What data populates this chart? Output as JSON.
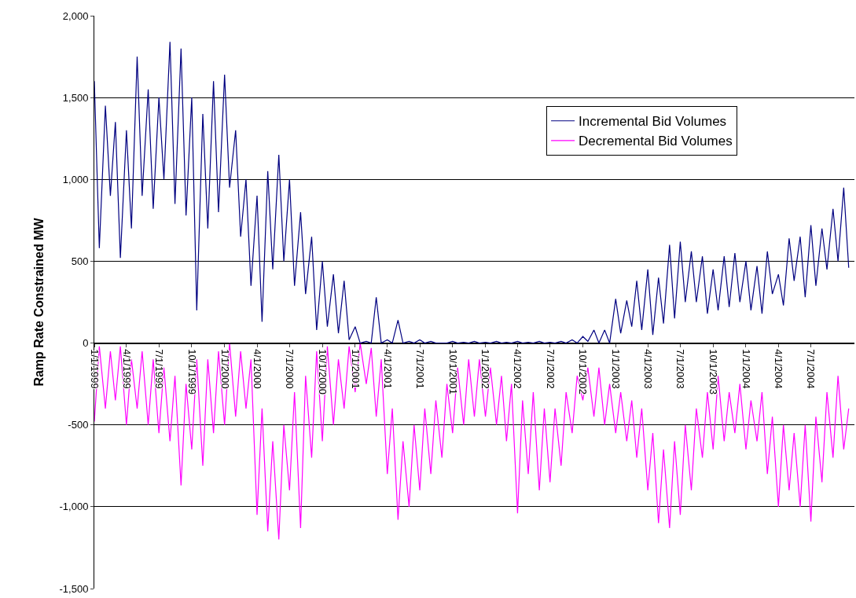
{
  "chart_data": {
    "type": "line",
    "ylabel": "Ramp Rate Constrained MW",
    "x": [
      "1999-01-01",
      "1999-01-15",
      "1999-02-01",
      "1999-02-15",
      "1999-03-01",
      "1999-03-15",
      "1999-04-01",
      "1999-04-15",
      "1999-05-01",
      "1999-05-15",
      "1999-06-01",
      "1999-06-15",
      "1999-07-01",
      "1999-07-15",
      "1999-08-01",
      "1999-08-15",
      "1999-09-01",
      "1999-09-15",
      "1999-10-01",
      "1999-10-15",
      "1999-11-01",
      "1999-11-15",
      "1999-12-01",
      "1999-12-15",
      "2000-01-01",
      "2000-01-15",
      "2000-02-01",
      "2000-02-15",
      "2000-03-01",
      "2000-03-15",
      "2000-04-01",
      "2000-04-15",
      "2000-05-01",
      "2000-05-15",
      "2000-06-01",
      "2000-06-15",
      "2000-07-01",
      "2000-07-15",
      "2000-08-01",
      "2000-08-15",
      "2000-09-01",
      "2000-09-15",
      "2000-10-01",
      "2000-10-15",
      "2000-11-01",
      "2000-11-15",
      "2000-12-01",
      "2000-12-15",
      "2001-01-01",
      "2001-01-15",
      "2001-02-01",
      "2001-02-15",
      "2001-03-01",
      "2001-03-15",
      "2001-04-01",
      "2001-04-15",
      "2001-05-01",
      "2001-05-15",
      "2001-06-01",
      "2001-06-15",
      "2001-07-01",
      "2001-07-15",
      "2001-08-01",
      "2001-08-15",
      "2001-09-01",
      "2001-09-15",
      "2001-10-01",
      "2001-10-15",
      "2001-11-01",
      "2001-11-15",
      "2001-12-01",
      "2001-12-15",
      "2002-01-01",
      "2002-01-15",
      "2002-02-01",
      "2002-02-15",
      "2002-03-01",
      "2002-03-15",
      "2002-04-01",
      "2002-04-15",
      "2002-05-01",
      "2002-05-15",
      "2002-06-01",
      "2002-06-15",
      "2002-07-01",
      "2002-07-15",
      "2002-08-01",
      "2002-08-15",
      "2002-09-01",
      "2002-09-15",
      "2002-10-01",
      "2002-10-15",
      "2002-11-01",
      "2002-11-15",
      "2002-12-01",
      "2002-12-15",
      "2003-01-01",
      "2003-01-15",
      "2003-02-01",
      "2003-02-15",
      "2003-03-01",
      "2003-03-15",
      "2003-04-01",
      "2003-04-15",
      "2003-05-01",
      "2003-05-15",
      "2003-06-01",
      "2003-06-15",
      "2003-07-01",
      "2003-07-15",
      "2003-08-01",
      "2003-08-15",
      "2003-09-01",
      "2003-09-15",
      "2003-10-01",
      "2003-10-15",
      "2003-11-01",
      "2003-11-15",
      "2003-12-01",
      "2003-12-15",
      "2004-01-01",
      "2004-01-15",
      "2004-02-01",
      "2004-02-15",
      "2004-03-01",
      "2004-03-15",
      "2004-04-01",
      "2004-04-15",
      "2004-05-01",
      "2004-05-15",
      "2004-06-01",
      "2004-06-15",
      "2004-07-01",
      "2004-07-15",
      "2004-08-01",
      "2004-08-15",
      "2004-09-01",
      "2004-09-15",
      "2004-10-01",
      "2004-10-15"
    ],
    "series": [
      {
        "name": "Incremental Bid Volumes",
        "color": "#000080",
        "values": [
          1600,
          580,
          1450,
          900,
          1350,
          520,
          1300,
          700,
          1750,
          900,
          1550,
          820,
          1500,
          1000,
          1840,
          850,
          1800,
          780,
          1500,
          200,
          1400,
          700,
          1600,
          800,
          1640,
          950,
          1300,
          650,
          1000,
          350,
          900,
          130,
          1050,
          450,
          1150,
          500,
          1000,
          350,
          800,
          300,
          650,
          80,
          500,
          100,
          420,
          60,
          380,
          20,
          100,
          0,
          10,
          0,
          280,
          0,
          20,
          0,
          140,
          0,
          10,
          0,
          20,
          0,
          10,
          0,
          0,
          0,
          10,
          0,
          5,
          0,
          10,
          0,
          5,
          0,
          10,
          0,
          5,
          0,
          10,
          0,
          5,
          0,
          10,
          0,
          5,
          0,
          10,
          0,
          20,
          0,
          40,
          10,
          80,
          0,
          80,
          0,
          270,
          60,
          260,
          100,
          380,
          80,
          450,
          50,
          400,
          120,
          600,
          150,
          620,
          250,
          560,
          250,
          530,
          180,
          450,
          200,
          530,
          220,
          550,
          250,
          500,
          200,
          470,
          180,
          560,
          300,
          420,
          230,
          640,
          380,
          650,
          280,
          720,
          350,
          700,
          450,
          820,
          500,
          950,
          460
        ]
      },
      {
        "name": "Decremental Bid Volumes",
        "color": "#ff00ff",
        "values": [
          -480,
          -20,
          -400,
          -50,
          -350,
          -20,
          -500,
          -100,
          -400,
          -50,
          -500,
          -100,
          -550,
          -150,
          -600,
          -200,
          -870,
          -250,
          -650,
          -100,
          -750,
          -100,
          -550,
          -50,
          -500,
          0,
          -450,
          -50,
          -400,
          -100,
          -1050,
          -400,
          -1150,
          -600,
          -1200,
          -500,
          -900,
          -300,
          -1130,
          -200,
          -700,
          -50,
          -600,
          -20,
          -500,
          -100,
          -400,
          -20,
          -300,
          0,
          -250,
          -30,
          -450,
          -100,
          -800,
          -400,
          -1080,
          -600,
          -1000,
          -500,
          -900,
          -400,
          -800,
          -350,
          -700,
          -250,
          -550,
          -150,
          -500,
          -100,
          -450,
          -100,
          -450,
          -150,
          -500,
          -200,
          -600,
          -250,
          -1040,
          -350,
          -800,
          -300,
          -900,
          -400,
          -850,
          -400,
          -750,
          -300,
          -550,
          -200,
          -350,
          -150,
          -450,
          -150,
          -500,
          -250,
          -550,
          -300,
          -600,
          -350,
          -700,
          -400,
          -900,
          -550,
          -1100,
          -650,
          -1130,
          -600,
          -1050,
          -500,
          -900,
          -400,
          -700,
          -300,
          -650,
          -200,
          -600,
          -300,
          -550,
          -250,
          -650,
          -350,
          -600,
          -300,
          -800,
          -450,
          -1000,
          -500,
          -900,
          -550,
          -1000,
          -500,
          -1090,
          -450,
          -850,
          -300,
          -700,
          -200,
          -650,
          -400
        ]
      }
    ],
    "xlim": [
      "1999-01-01",
      "2004-10-31"
    ],
    "xticks": [
      {
        "value": "1999-01-01",
        "label": "1/1/1999"
      },
      {
        "value": "1999-04-01",
        "label": "4/1/1999"
      },
      {
        "value": "1999-07-01",
        "label": "7/1/1999"
      },
      {
        "value": "1999-10-01",
        "label": "10/1/1999"
      },
      {
        "value": "2000-01-01",
        "label": "1/1/2000"
      },
      {
        "value": "2000-04-01",
        "label": "4/1/2000"
      },
      {
        "value": "2000-07-01",
        "label": "7/1/2000"
      },
      {
        "value": "2000-10-01",
        "label": "10/1/2000"
      },
      {
        "value": "2001-01-01",
        "label": "1/1/2001"
      },
      {
        "value": "2001-04-01",
        "label": "4/1/2001"
      },
      {
        "value": "2001-07-01",
        "label": "7/1/2001"
      },
      {
        "value": "2001-10-01",
        "label": "10/1/2001"
      },
      {
        "value": "2002-01-01",
        "label": "1/1/2002"
      },
      {
        "value": "2002-04-01",
        "label": "4/1/2002"
      },
      {
        "value": "2002-07-01",
        "label": "7/1/2002"
      },
      {
        "value": "2002-10-01",
        "label": "10/1/2002"
      },
      {
        "value": "2003-01-01",
        "label": "1/1/2003"
      },
      {
        "value": "2003-04-01",
        "label": "4/1/2003"
      },
      {
        "value": "2003-07-01",
        "label": "7/1/2003"
      },
      {
        "value": "2003-10-01",
        "label": "10/1/2003"
      },
      {
        "value": "2004-01-01",
        "label": "1/1/2004"
      },
      {
        "value": "2004-04-01",
        "label": "4/1/2004"
      },
      {
        "value": "2004-07-01",
        "label": "7/1/2004"
      }
    ],
    "ylim": [
      -1500,
      2000
    ],
    "yticks": [
      {
        "value": -1500,
        "label": "-1,500"
      },
      {
        "value": -1000,
        "label": "-1,000"
      },
      {
        "value": -500,
        "label": "-500"
      },
      {
        "value": 0,
        "label": "0"
      },
      {
        "value": 500,
        "label": "500"
      },
      {
        "value": 1000,
        "label": "1,000"
      },
      {
        "value": 1500,
        "label": "1,500"
      },
      {
        "value": 2000,
        "label": "2,000"
      }
    ],
    "grid": "y",
    "legend": "top right",
    "marker": "none",
    "line_style": "solid"
  }
}
